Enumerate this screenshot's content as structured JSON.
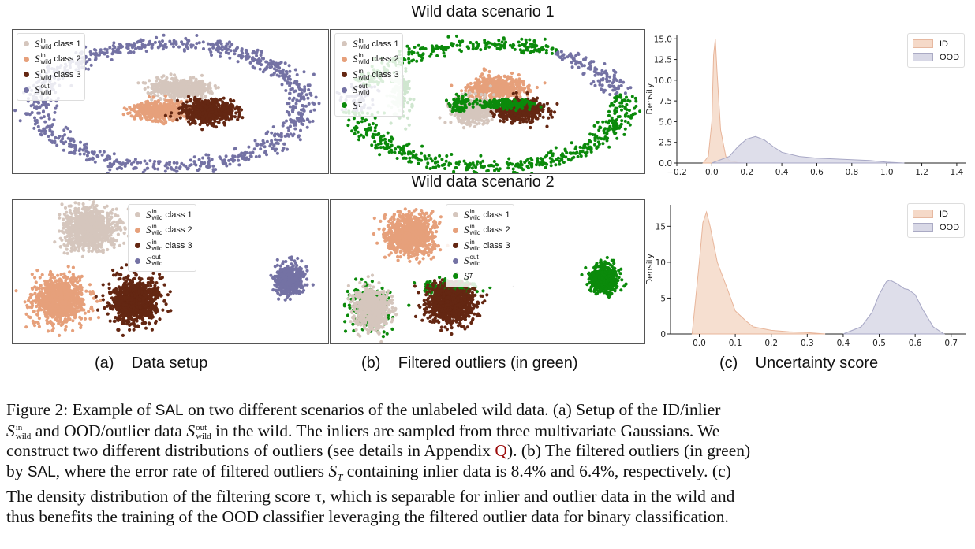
{
  "scenario1_title": "Wild data scenario 1",
  "scenario2_title": "Wild data scenario 2",
  "legend": {
    "class1": "class 1",
    "class2": "class 2",
    "class3": "class 3",
    "S": "S",
    "in": "in",
    "out": "out",
    "wild": "wild",
    "T": "T"
  },
  "subcaptions": {
    "a_tag": "(a)",
    "a_text": "Data setup",
    "b_tag": "(b)",
    "b_text": "Filtered outliers (in green)",
    "c_tag": "(c)",
    "c_text": "Uncertainty score"
  },
  "colors": {
    "class1": "#d5c6bd",
    "class2": "#e6a07b",
    "class3": "#642712",
    "outlier": "#7472a4",
    "filtered": "#0b8a0b",
    "id_fill": "#f5d9c8",
    "ood_fill": "#d8d8e6"
  },
  "chart_data": [
    {
      "type": "area",
      "title": "",
      "xlabel": "",
      "ylabel": "Density",
      "xlim": [
        -0.2,
        1.45
      ],
      "ylim": [
        0,
        15.5
      ],
      "xticks": [
        "−0.2",
        "0.0",
        "0.2",
        "0.4",
        "0.6",
        "0.8",
        "1.0",
        "1.2",
        "1.4"
      ],
      "yticks": [
        "0.0",
        "2.5",
        "5.0",
        "7.5",
        "10.0",
        "12.5",
        "15.0"
      ],
      "legend": [
        "ID",
        "OOD"
      ],
      "series": [
        {
          "name": "ID",
          "x": [
            -0.05,
            -0.02,
            0.0,
            0.01,
            0.02,
            0.03,
            0.05,
            0.08,
            0.1,
            0.15,
            0.2
          ],
          "y": [
            0,
            0.8,
            5,
            13,
            15,
            11,
            4,
            0.8,
            0.3,
            0.05,
            0
          ]
        },
        {
          "name": "OOD",
          "x": [
            0.0,
            0.1,
            0.15,
            0.2,
            0.25,
            0.3,
            0.35,
            0.4,
            0.5,
            0.6,
            0.7,
            0.8,
            0.9,
            1.0,
            1.1
          ],
          "y": [
            0,
            0.8,
            2.0,
            2.9,
            3.2,
            2.8,
            2.0,
            1.3,
            0.8,
            0.6,
            0.5,
            0.4,
            0.3,
            0.1,
            0
          ]
        }
      ]
    },
    {
      "type": "area",
      "title": "",
      "xlabel": "",
      "ylabel": "Density",
      "xlim": [
        -0.08,
        0.74
      ],
      "ylim": [
        0,
        18
      ],
      "xticks": [
        "0.0",
        "0.1",
        "0.2",
        "0.3",
        "0.4",
        "0.5",
        "0.6",
        "0.7"
      ],
      "yticks": [
        "0",
        "5",
        "10",
        "15"
      ],
      "legend": [
        "ID",
        "OOD"
      ],
      "series": [
        {
          "name": "ID",
          "x": [
            -0.02,
            0.0,
            0.01,
            0.02,
            0.03,
            0.05,
            0.08,
            0.1,
            0.13,
            0.15,
            0.2,
            0.25,
            0.3,
            0.35
          ],
          "y": [
            0,
            10,
            15.5,
            17,
            15,
            10,
            6,
            3.2,
            1.8,
            1.0,
            0.5,
            0.3,
            0.2,
            0
          ]
        },
        {
          "name": "OOD",
          "x": [
            0.4,
            0.45,
            0.48,
            0.5,
            0.52,
            0.53,
            0.55,
            0.57,
            0.58,
            0.6,
            0.62,
            0.65,
            0.68
          ],
          "y": [
            0,
            1.0,
            3.0,
            5.5,
            7.3,
            7.5,
            7.0,
            6.3,
            6.2,
            5.5,
            3.5,
            1.0,
            0
          ]
        }
      ]
    }
  ],
  "caption": {
    "line1_a": "Figure 2:",
    "line1_b": " Example of ",
    "sal": "SAL",
    "line1_c": " on two different scenarios of the unlabeled wild data.  (a) Setup of the ID/inlier",
    "line2_b": " and OOD/outlier data ",
    "line2_d": " in the wild.  The inliers are sampled from three multivariate Gaussians.  We",
    "line3_a": "construct two different distributions of outliers (see details in Appendix ",
    "line3_ref": "Q",
    "line3_b": "). (b) The filtered outliers (in green)",
    "line4_a": "by ",
    "line4_b": ", where the error rate of filtered outliers ",
    "line4_c": " containing inlier data is 8.4% and 6.4%, respectively. (c)",
    "line5": "The density distribution of the filtering score τ, which is separable for inlier and outlier data in the wild and",
    "line6": "thus benefits the training of the OOD classifier leveraging the filtered outlier data for binary classification."
  }
}
